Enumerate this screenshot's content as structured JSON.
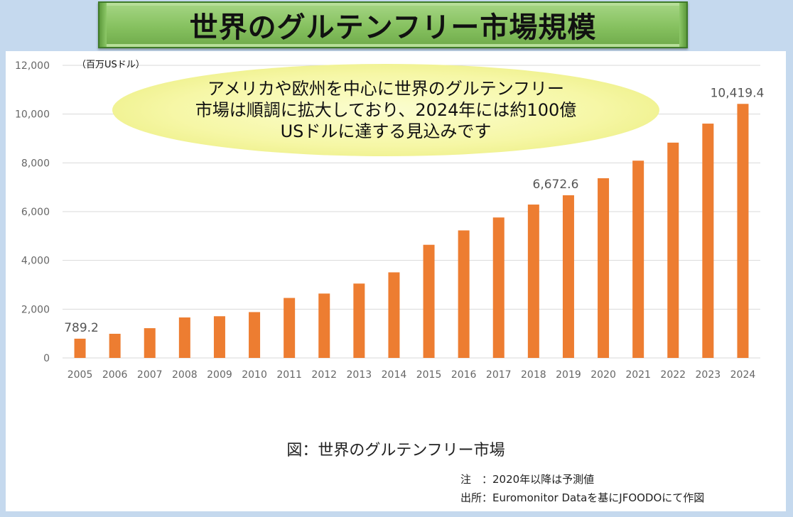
{
  "header": {
    "title": "世界のグルテンフリー市場規模"
  },
  "callout": {
    "text": "アメリカや欧州を中心に世界のグルテンフリー\n市場は順調に拡大しており、2024年には約100億\nUSドルに達する見込みです"
  },
  "notes": {
    "note": "注　：2020年以降は予測値",
    "source": "出所：Euromonitor Dataを基にJFOODOにて作図"
  },
  "chart_data": {
    "type": "bar",
    "title": "図：世界のグルテンフリー市場",
    "unit": "（百万USドル）",
    "categories": [
      "2005",
      "2006",
      "2007",
      "2008",
      "2009",
      "2010",
      "2011",
      "2012",
      "2013",
      "2014",
      "2015",
      "2016",
      "2017",
      "2018",
      "2019",
      "2020",
      "2021",
      "2022",
      "2023",
      "2024"
    ],
    "values": [
      789.2,
      990,
      1220,
      1660,
      1710,
      1880,
      2460,
      2640,
      3050,
      3510,
      4640,
      5230,
      5760,
      6290,
      6672.6,
      7370,
      8090,
      8830,
      9610,
      10419.4
    ],
    "data_labels": [
      {
        "category": "2005",
        "text": "789.2"
      },
      {
        "category": "2019",
        "text": "6,672.6"
      },
      {
        "category": "2024",
        "text": "10,419.4"
      }
    ],
    "ylim": [
      0,
      12000
    ],
    "yticks": [
      0,
      2000,
      4000,
      6000,
      8000,
      10000,
      12000
    ],
    "ytick_labels": [
      "0",
      "2,000",
      "4,000",
      "6,000",
      "8,000",
      "10,000",
      "12,000"
    ],
    "grid": true,
    "colors": {
      "bar": "#ed7d31",
      "grid": "#d9d9d9"
    }
  }
}
